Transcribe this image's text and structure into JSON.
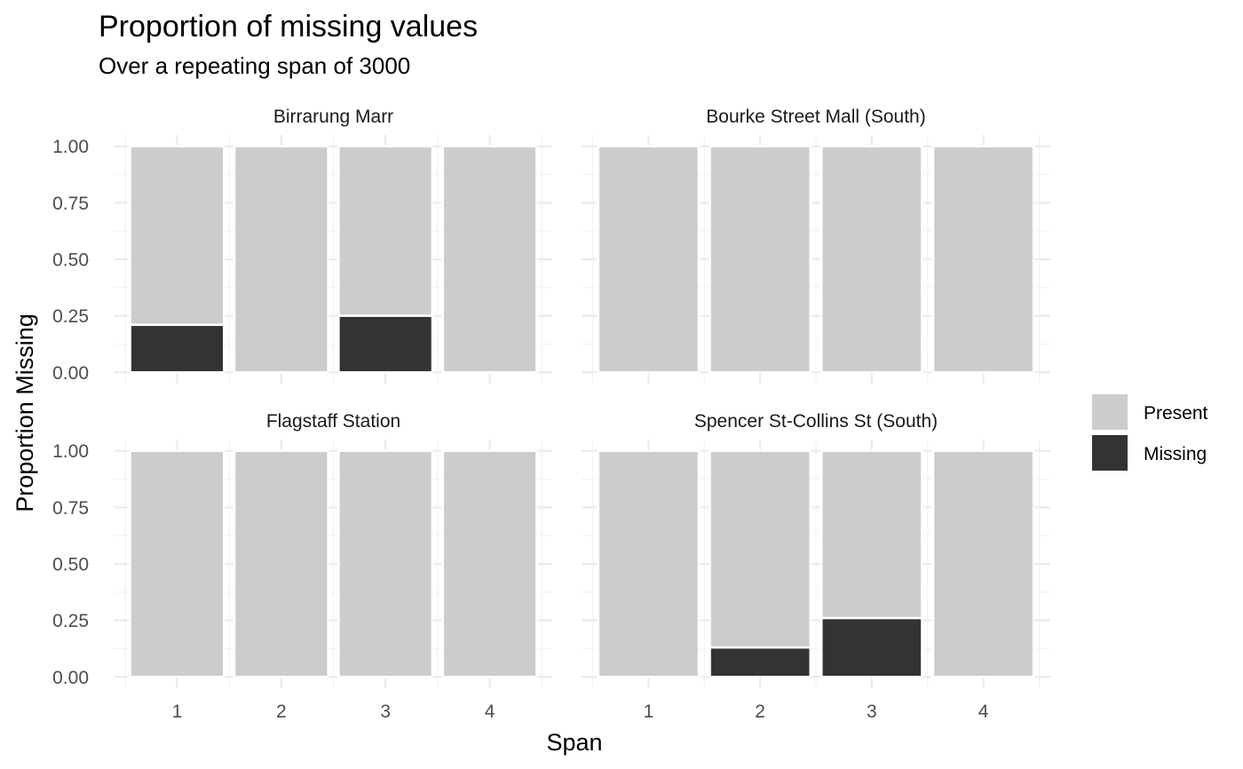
{
  "chart_data": {
    "type": "bar",
    "stacked": true,
    "title": "Proportion of missing values",
    "subtitle": "Over a repeating span of 3000",
    "xlabel": "Span",
    "ylabel": "Proportion Missing",
    "ylim": [
      0,
      1
    ],
    "yticks": [
      "0.00",
      "0.25",
      "0.50",
      "0.75",
      "1.00"
    ],
    "categories": [
      "1",
      "2",
      "3",
      "4"
    ],
    "grid": true,
    "legend_position": "right",
    "legend": [
      {
        "key": "present",
        "label": "Present",
        "color": "#cccccc"
      },
      {
        "key": "missing",
        "label": "Missing",
        "color": "#333333"
      }
    ],
    "facets": [
      {
        "name": "Birrarung Marr",
        "missing": [
          0.21,
          0.0,
          0.25,
          0.0
        ]
      },
      {
        "name": "Bourke Street Mall (South)",
        "missing": [
          0.0,
          0.0,
          0.0,
          0.0
        ]
      },
      {
        "name": "Flagstaff Station",
        "missing": [
          0.0,
          0.0,
          0.0,
          0.0
        ]
      },
      {
        "name": "Spencer St-Collins St (South)",
        "missing": [
          0.0,
          0.13,
          0.26,
          0.0
        ]
      }
    ]
  }
}
